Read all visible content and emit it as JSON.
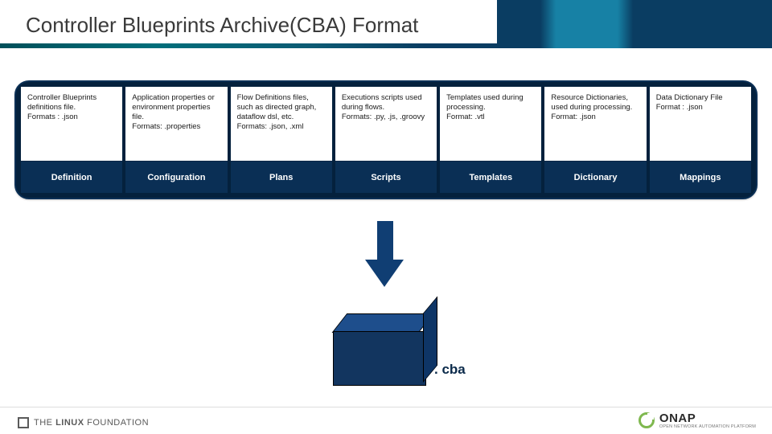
{
  "title": "Controller Blueprints Archive(CBA) Format",
  "colors": {
    "container_border": "#0a2f55",
    "container_bg": "#04213d",
    "label_bg": "#0a2f55",
    "arrow": "#103e73",
    "cube_front": "#12355f",
    "cube_top": "#1e4e8c",
    "cube_side": "#0e3566"
  },
  "columns": [
    {
      "desc": "Controller Blueprints definitions file.\nFormats : .json",
      "label": "Definition"
    },
    {
      "desc": "Application properties or environment properties file.\nFormats: .properties",
      "label": "Configuration"
    },
    {
      "desc": "Flow Definitions files, such as directed graph, dataflow dsl, etc.\nFormats: .json, .xml",
      "label": "Plans"
    },
    {
      "desc": "Executions scripts used during flows.\nFormats: .py, .js, .groovy",
      "label": "Scripts"
    },
    {
      "desc": "Templates used during processing.\nFormat: .vtl",
      "label": "Templates"
    },
    {
      "desc": "Resource Dictionaries, used during processing.\nFormat: .json",
      "label": "Dictionary"
    },
    {
      "desc": "Data Dictionary File\nFormat : .json",
      "label": "Mappings"
    }
  ],
  "cba_label": ". cba",
  "footer": {
    "linux_foundation_prefix": "THE",
    "linux_foundation_main": "LINUX",
    "linux_foundation_suffix": "FOUNDATION",
    "onap": "ONAP",
    "onap_sub": "OPEN NETWORK AUTOMATION PLATFORM"
  }
}
